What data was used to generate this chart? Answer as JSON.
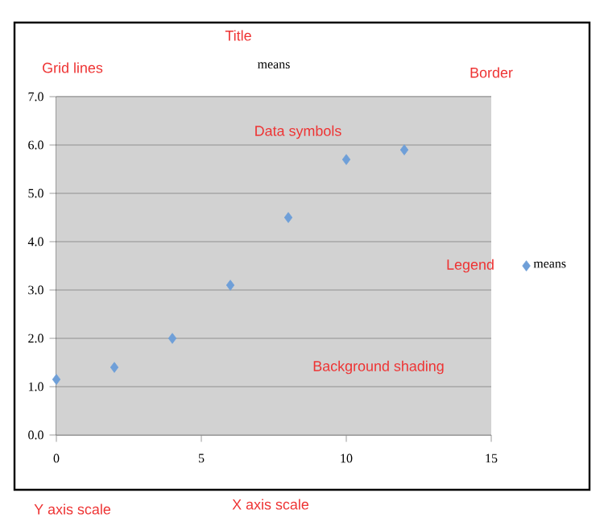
{
  "chart_data": {
    "type": "scatter",
    "title": "means",
    "x": [
      0,
      2,
      4,
      6,
      8,
      10,
      12
    ],
    "series": [
      {
        "name": "means",
        "color": "#6f9fd8",
        "values": [
          1.15,
          1.4,
          2.0,
          3.1,
          4.5,
          5.7,
          5.9
        ]
      }
    ],
    "xlim": [
      0,
      15
    ],
    "xticks": [
      0,
      5,
      10,
      15
    ],
    "ylim": [
      0,
      7
    ],
    "yticks": [
      {
        "value": 0,
        "label": "0.0"
      },
      {
        "value": 1,
        "label": "1.0"
      },
      {
        "value": 2,
        "label": "2.0"
      },
      {
        "value": 3,
        "label": "3.0"
      },
      {
        "value": 4,
        "label": "4.0"
      },
      {
        "value": 5,
        "label": "5.0"
      },
      {
        "value": 6,
        "label": "6.0"
      },
      {
        "value": 7,
        "label": "7.0"
      }
    ],
    "grid": "y",
    "legend": "right",
    "marker": "diamond",
    "annotations": [
      "Title",
      "Grid lines",
      "Border",
      "Data symbols",
      "Legend",
      "Background shading",
      "Y axis scale",
      "X axis scale"
    ]
  }
}
